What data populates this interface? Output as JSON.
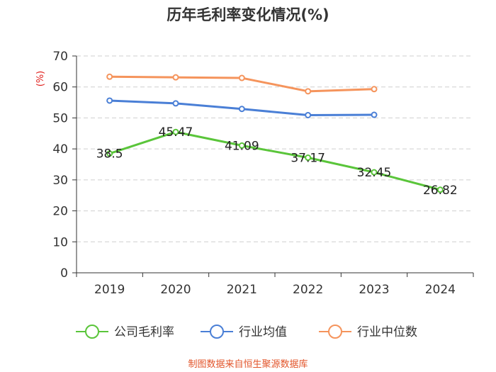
{
  "chart_data": {
    "type": "line",
    "title": "历年毛利率变化情况(%)",
    "y_unit_label": "(%)",
    "categories": [
      "2019",
      "2020",
      "2021",
      "2022",
      "2023",
      "2024"
    ],
    "ylim": [
      0,
      70
    ],
    "yticks": [
      0,
      10,
      20,
      30,
      40,
      50,
      60,
      70
    ],
    "grid": true,
    "legend_position": "bottom",
    "series": [
      {
        "name": "公司毛利率",
        "color": "#5ac53a",
        "values": [
          38.5,
          45.47,
          41.09,
          37.17,
          32.45,
          26.82
        ],
        "labels": [
          "38.5",
          "45.47",
          "41.09",
          "37.17",
          "32.45",
          "26.82"
        ]
      },
      {
        "name": "行业均值",
        "color": "#4a7fd6",
        "values": [
          55.6,
          54.7,
          52.9,
          50.9,
          51.0,
          null
        ]
      },
      {
        "name": "行业中位数",
        "color": "#f5945c",
        "values": [
          63.3,
          63.1,
          62.9,
          58.6,
          59.3,
          null
        ]
      }
    ]
  },
  "colors": {
    "unit_label": "#e0201c",
    "source": "#e2542a"
  },
  "source_text": "制图数据来自恒生聚源数据库"
}
